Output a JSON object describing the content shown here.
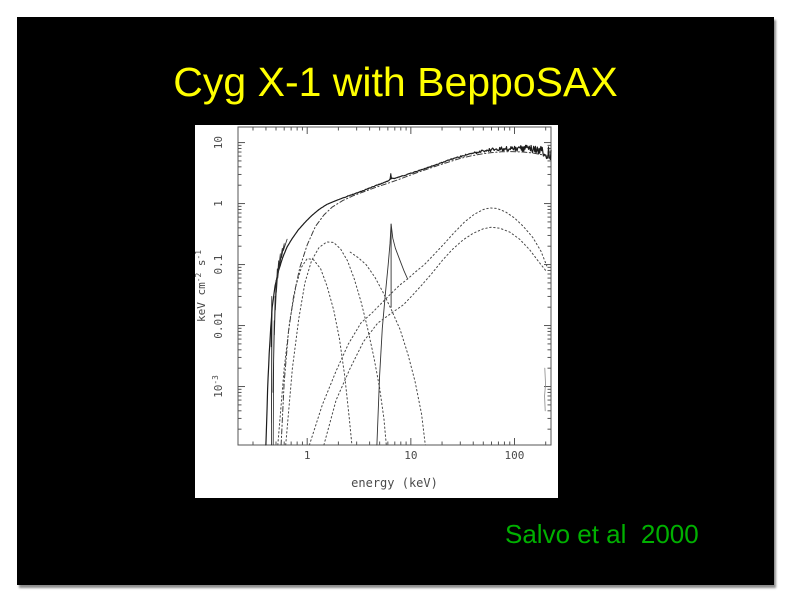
{
  "slide": {
    "title": "Cyg X-1 with BeppoSAX",
    "title_color": "#ffff00",
    "caption": "Salvo et al  2000",
    "caption_color": "#00b000",
    "background": "#000000",
    "page_background": "#ffffff"
  },
  "chart_data": {
    "type": "line",
    "title": "",
    "xlabel": "energy (keV)",
    "ylabel": "keV cm^-2 s^-1",
    "xscale": "log",
    "yscale": "log",
    "xlim": [
      0.215,
      225
    ],
    "ylim": [
      0.00011,
      18
    ],
    "grid": false,
    "legend": false,
    "frame_color": "#555555",
    "text_color": "#4a4a4a",
    "x_major_ticks": [
      1,
      10,
      100
    ],
    "x_tick_labels": [
      "1",
      "10",
      "100"
    ],
    "y_major_ticks": [
      0.001,
      0.01,
      0.1,
      1,
      10
    ],
    "y_tick_labels": [
      "10^-3",
      "0.01",
      "0.1",
      "1",
      "10"
    ],
    "series": [
      {
        "name": "total-spectrum-data",
        "style": "solid",
        "color": "#1c1c1c",
        "width": 1.2,
        "noise": true,
        "points": [
          [
            0.4,
            0.00011
          ],
          [
            0.415,
            0.0009
          ],
          [
            0.43,
            0.0035
          ],
          [
            0.445,
            0.009
          ],
          [
            0.46,
            0.02
          ],
          [
            0.49,
            0.045
          ],
          [
            0.53,
            0.08
          ],
          [
            0.58,
            0.13
          ],
          [
            0.64,
            0.195
          ],
          [
            0.72,
            0.27
          ],
          [
            0.82,
            0.37
          ],
          [
            0.95,
            0.49
          ],
          [
            1.1,
            0.63
          ],
          [
            1.3,
            0.8
          ],
          [
            1.55,
            0.97
          ],
          [
            1.85,
            1.1
          ],
          [
            2.3,
            1.27
          ],
          [
            2.9,
            1.46
          ],
          [
            3.6,
            1.67
          ],
          [
            4.5,
            1.95
          ],
          [
            5.5,
            2.2
          ],
          [
            6.1,
            2.38
          ],
          [
            6.45,
            2.6
          ],
          [
            7.0,
            2.58
          ],
          [
            8.0,
            2.78
          ],
          [
            9.5,
            3.05
          ],
          [
            11.5,
            3.4
          ],
          [
            14,
            3.8
          ],
          [
            17,
            4.25
          ],
          [
            21,
            4.85
          ],
          [
            26,
            5.5
          ],
          [
            32,
            6.1
          ],
          [
            40,
            6.7
          ],
          [
            50,
            7.25
          ],
          [
            62,
            7.65
          ],
          [
            78,
            7.9
          ],
          [
            95,
            8.05
          ],
          [
            115,
            8.05
          ],
          [
            135,
            8.0
          ],
          [
            155,
            7.85
          ],
          [
            175,
            7.55
          ],
          [
            190,
            7.1
          ],
          [
            200,
            6.5
          ],
          [
            207,
            5.4
          ],
          [
            213,
            7.0
          ],
          [
            219,
            5.8
          ],
          [
            225,
            6.4
          ]
        ]
      },
      {
        "name": "comptonization-model",
        "style": "dashdot",
        "color": "#3c3c3c",
        "width": 1,
        "points": [
          [
            0.56,
            0.00011
          ],
          [
            0.6,
            0.0012
          ],
          [
            0.66,
            0.008
          ],
          [
            0.74,
            0.03
          ],
          [
            0.85,
            0.09
          ],
          [
            1.0,
            0.21
          ],
          [
            1.2,
            0.42
          ],
          [
            1.45,
            0.65
          ],
          [
            1.75,
            0.88
          ],
          [
            2.2,
            1.12
          ],
          [
            2.8,
            1.35
          ],
          [
            3.6,
            1.58
          ],
          [
            4.6,
            1.85
          ],
          [
            6.0,
            2.15
          ],
          [
            7.5,
            2.45
          ],
          [
            9.5,
            2.85
          ],
          [
            12,
            3.3
          ],
          [
            15,
            3.75
          ],
          [
            19,
            4.3
          ],
          [
            24,
            4.9
          ],
          [
            30,
            5.5
          ],
          [
            38,
            6.05
          ],
          [
            48,
            6.5
          ],
          [
            60,
            6.85
          ],
          [
            75,
            7.05
          ],
          [
            95,
            7.1
          ],
          [
            120,
            7.0
          ],
          [
            150,
            6.75
          ],
          [
            185,
            6.3
          ],
          [
            225,
            5.7
          ]
        ]
      },
      {
        "name": "disk-blackbody-component",
        "style": "dotted",
        "color": "#484848",
        "width": 1,
        "points": [
          [
            0.52,
            0.00011
          ],
          [
            0.6,
            0.002
          ],
          [
            0.68,
            0.012
          ],
          [
            0.78,
            0.045
          ],
          [
            0.88,
            0.09
          ],
          [
            1.0,
            0.125
          ],
          [
            1.15,
            0.12
          ],
          [
            1.35,
            0.085
          ],
          [
            1.55,
            0.045
          ],
          [
            1.8,
            0.018
          ],
          [
            2.05,
            0.006
          ],
          [
            2.3,
            0.0015
          ],
          [
            2.55,
            0.0003
          ],
          [
            2.7,
            0.00011
          ]
        ]
      },
      {
        "name": "soft-excess-component",
        "style": "dotted",
        "color": "#484848",
        "width": 1,
        "points": [
          [
            0.62,
            0.00011
          ],
          [
            0.72,
            0.002
          ],
          [
            0.83,
            0.013
          ],
          [
            0.95,
            0.05
          ],
          [
            1.1,
            0.115
          ],
          [
            1.3,
            0.19
          ],
          [
            1.55,
            0.235
          ],
          [
            1.8,
            0.23
          ],
          [
            2.1,
            0.18
          ],
          [
            2.45,
            0.115
          ],
          [
            2.85,
            0.058
          ],
          [
            3.3,
            0.025
          ],
          [
            3.8,
            0.0095
          ],
          [
            4.4,
            0.003
          ],
          [
            5.0,
            0.00095
          ],
          [
            5.5,
            0.0003
          ],
          [
            5.8,
            0.00011
          ]
        ]
      },
      {
        "name": "soft-tail-component",
        "style": "dotted",
        "color": "#484848",
        "width": 1,
        "points": [
          [
            2.6,
            0.16
          ],
          [
            3.1,
            0.13
          ],
          [
            3.7,
            0.1
          ],
          [
            4.5,
            0.062
          ],
          [
            5.4,
            0.035
          ],
          [
            6.5,
            0.018
          ],
          [
            7.9,
            0.0085
          ],
          [
            9.4,
            0.0033
          ],
          [
            11,
            0.0012
          ],
          [
            12.7,
            0.00035
          ],
          [
            13.8,
            0.00011
          ]
        ]
      },
      {
        "name": "iron-line-profile",
        "style": "solid",
        "color": "#333333",
        "width": 0.9,
        "points": [
          [
            4.7,
            0.00011
          ],
          [
            5.0,
            0.0015
          ],
          [
            5.3,
            0.009
          ],
          [
            5.7,
            0.035
          ],
          [
            6.05,
            0.1
          ],
          [
            6.3,
            0.22
          ],
          [
            6.45,
            0.46
          ],
          [
            6.7,
            0.27
          ],
          [
            7.1,
            0.185
          ],
          [
            7.8,
            0.12
          ],
          [
            8.6,
            0.078
          ],
          [
            9.3,
            0.058
          ]
        ]
      },
      {
        "name": "iron-line-core",
        "style": "solid",
        "color": "#333333",
        "width": 0.9,
        "points": [
          [
            6.45,
            0.02
          ],
          [
            6.45,
            0.46
          ]
        ]
      },
      {
        "name": "reflection-hump-upper",
        "style": "dotted",
        "color": "#484848",
        "width": 1,
        "points": [
          [
            1.05,
            0.00011
          ],
          [
            1.4,
            0.0005
          ],
          [
            1.9,
            0.0018
          ],
          [
            2.5,
            0.005
          ],
          [
            3.3,
            0.011
          ],
          [
            4.2,
            0.016
          ],
          [
            5.3,
            0.024
          ],
          [
            6.5,
            0.034
          ],
          [
            7.8,
            0.046
          ],
          [
            9.3,
            0.058
          ],
          [
            11,
            0.075
          ],
          [
            13.5,
            0.1
          ],
          [
            17,
            0.15
          ],
          [
            21,
            0.22
          ],
          [
            26,
            0.33
          ],
          [
            33,
            0.5
          ],
          [
            41,
            0.67
          ],
          [
            50,
            0.8
          ],
          [
            58,
            0.85
          ],
          [
            68,
            0.83
          ],
          [
            82,
            0.73
          ],
          [
            100,
            0.58
          ],
          [
            122,
            0.42
          ],
          [
            150,
            0.28
          ],
          [
            180,
            0.165
          ],
          [
            205,
            0.095
          ]
        ]
      },
      {
        "name": "reflection-hump-lower",
        "style": "dotted",
        "color": "#484848",
        "width": 1,
        "points": [
          [
            1.45,
            0.00011
          ],
          [
            1.9,
            0.0006
          ],
          [
            2.6,
            0.002
          ],
          [
            3.5,
            0.0055
          ],
          [
            4.8,
            0.011
          ],
          [
            6.5,
            0.016
          ],
          [
            8.5,
            0.022
          ],
          [
            10.5,
            0.032
          ],
          [
            13,
            0.048
          ],
          [
            16,
            0.072
          ],
          [
            20,
            0.115
          ],
          [
            25,
            0.175
          ],
          [
            32,
            0.255
          ],
          [
            40,
            0.325
          ],
          [
            50,
            0.385
          ],
          [
            60,
            0.41
          ],
          [
            72,
            0.395
          ],
          [
            90,
            0.34
          ],
          [
            112,
            0.26
          ],
          [
            140,
            0.175
          ],
          [
            172,
            0.11
          ],
          [
            200,
            0.08
          ]
        ]
      },
      {
        "name": "lecs-data-jagged-1",
        "style": "solid",
        "color": "#222222",
        "width": 0.8,
        "points": [
          [
            0.452,
            0.00011
          ],
          [
            0.456,
            0.03
          ],
          [
            0.45,
            0.0045
          ],
          [
            0.458,
            0.016
          ],
          [
            0.453,
            0.00025
          ]
        ]
      },
      {
        "name": "lecs-data-jagged-2",
        "style": "solid",
        "color": "#2a2a2a",
        "width": 0.8,
        "points": [
          [
            0.47,
            0.00011
          ],
          [
            0.475,
            0.0035
          ],
          [
            0.468,
            0.0008
          ],
          [
            0.48,
            0.012
          ],
          [
            0.473,
            0.002
          ],
          [
            0.49,
            0.03
          ],
          [
            0.483,
            0.007
          ],
          [
            0.5,
            0.055
          ],
          [
            0.493,
            0.018
          ],
          [
            0.515,
            0.085
          ],
          [
            0.505,
            0.035
          ],
          [
            0.53,
            0.115
          ],
          [
            0.52,
            0.06
          ],
          [
            0.55,
            0.15
          ],
          [
            0.54,
            0.09
          ],
          [
            0.575,
            0.185
          ],
          [
            0.565,
            0.13
          ],
          [
            0.6,
            0.22
          ],
          [
            0.59,
            0.17
          ],
          [
            0.64,
            0.26
          ]
        ]
      },
      {
        "name": "fe-line-data-spike",
        "style": "solid",
        "color": "#1c1c1c",
        "width": 1,
        "points": [
          [
            6.3,
            2.5
          ],
          [
            6.4,
            3.1
          ],
          [
            6.5,
            2.55
          ]
        ]
      },
      {
        "name": "scan-artifact",
        "style": "solid",
        "color": "#8a8a8a",
        "width": 0.8,
        "points": [
          [
            196,
            0.002
          ],
          [
            199,
            0.0011
          ],
          [
            195,
            0.0007
          ],
          [
            198,
            0.0004
          ]
        ]
      }
    ]
  }
}
